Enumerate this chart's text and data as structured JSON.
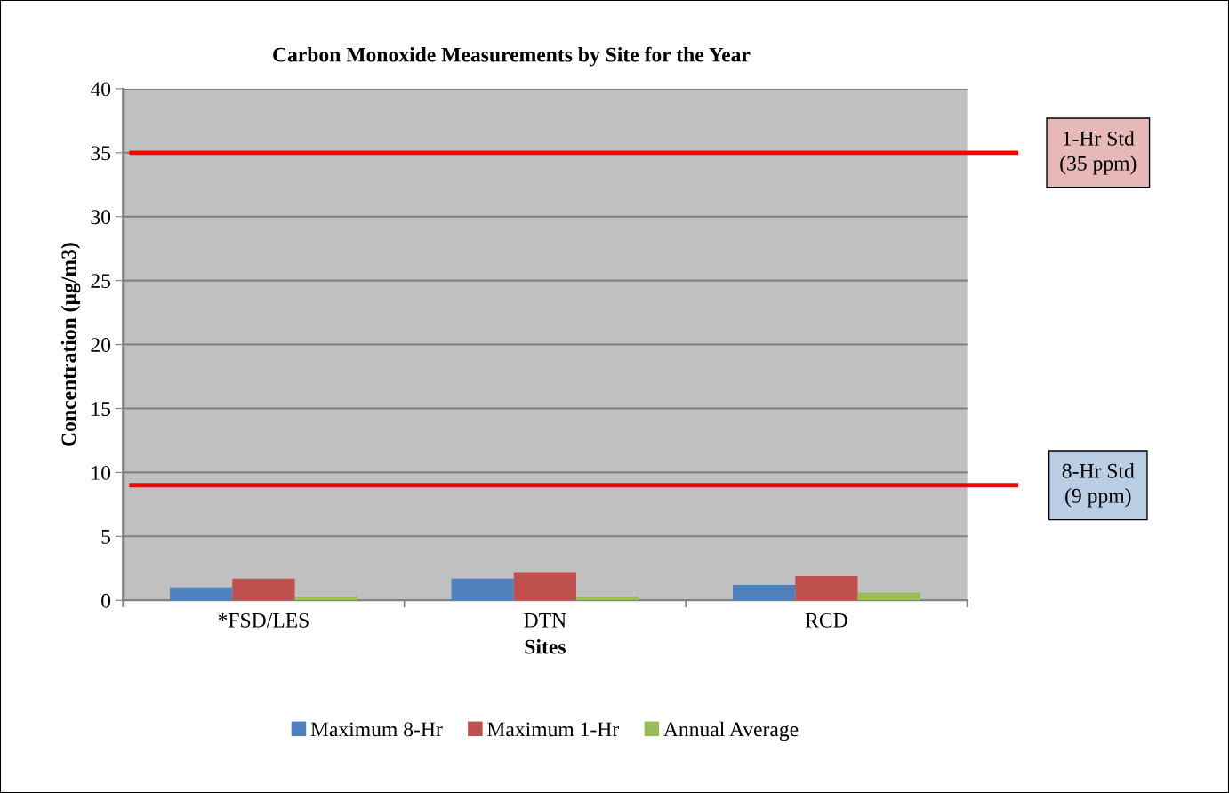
{
  "chart_data": {
    "type": "bar",
    "title": "Carbon Monoxide Measurements by Site for the Year",
    "xlabel": "Sites",
    "ylabel": "Concentration (µg/m3)",
    "categories": [
      "*FSD/LES",
      "DTN",
      "RCD"
    ],
    "series": [
      {
        "name": "Maximum 8-Hr",
        "color": "#4f81bd",
        "values": [
          1.0,
          1.7,
          1.2
        ]
      },
      {
        "name": "Maximum 1-Hr",
        "color": "#c0504d",
        "values": [
          1.7,
          2.2,
          1.9
        ]
      },
      {
        "name": "Annual Average",
        "color": "#9bbb59",
        "values": [
          0.3,
          0.3,
          0.6
        ]
      }
    ],
    "ylim": [
      0,
      40
    ],
    "yticks": [
      0,
      5,
      10,
      15,
      20,
      25,
      30,
      35,
      40
    ],
    "grid": "y",
    "legend": "bottom",
    "ref_lines": [
      {
        "axis": "y",
        "value": 35,
        "label": "1-Hr Std\n(35 ppm)",
        "color": "#ff0000"
      },
      {
        "axis": "y",
        "value": 9,
        "label": "8-Hr Std\n(9 ppm)",
        "color": "#ff0000"
      }
    ]
  }
}
